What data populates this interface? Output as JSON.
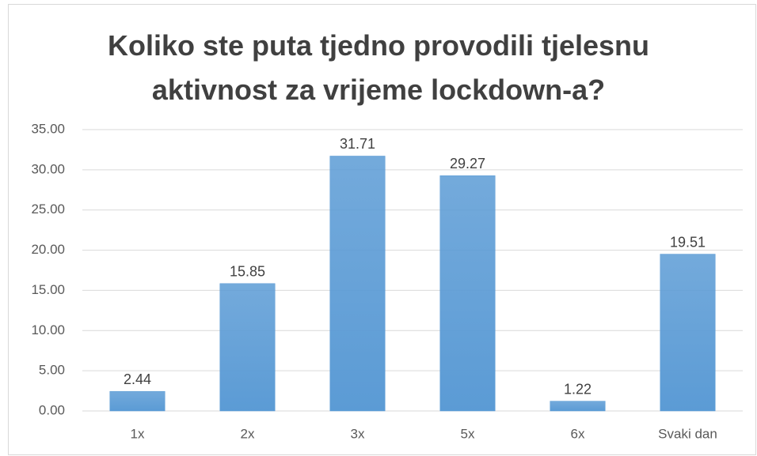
{
  "chart_data": {
    "type": "bar",
    "title": "Koliko ste puta tjedno provodili tjelesnu aktivnost za vrijeme lockdown-a?",
    "categories": [
      "1x",
      "2x",
      "3x",
      "5x",
      "6x",
      "Svaki dan"
    ],
    "values": [
      2.44,
      15.85,
      31.71,
      29.27,
      1.22,
      19.51
    ],
    "color": "#5b9bd5",
    "ylim": [
      0,
      35
    ],
    "yticks": [
      {
        "value": 0,
        "label": "0.00"
      },
      {
        "value": 5,
        "label": "5.00"
      },
      {
        "value": 10,
        "label": "10.00"
      },
      {
        "value": 15,
        "label": "15.00"
      },
      {
        "value": 20,
        "label": "20.00"
      },
      {
        "value": 25,
        "label": "25.00"
      },
      {
        "value": 30,
        "label": "30.00"
      },
      {
        "value": 35,
        "label": "35.00"
      }
    ],
    "grid": true
  }
}
